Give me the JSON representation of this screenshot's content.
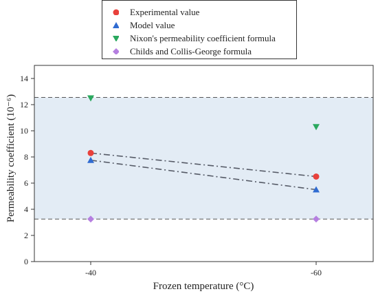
{
  "chart_data": {
    "type": "line",
    "categories": [
      "-40",
      "-60"
    ],
    "xlabel": "Frozen temperature (°C)",
    "ylabel": "Permeability coefficient (10⁻⁶)",
    "ylim": [
      0,
      15
    ],
    "yticks": [
      0,
      2,
      4,
      6,
      8,
      10,
      12,
      14
    ],
    "band": [
      3.25,
      12.55
    ],
    "band_color": "#e3ecf5",
    "legend_position": "top-center, outside plot",
    "series": [
      {
        "name": "Experimental value",
        "values": [
          8.3,
          6.5
        ],
        "marker": "circle",
        "color": "#e8413c",
        "line": "dash-dot"
      },
      {
        "name": "Model value",
        "values": [
          7.75,
          5.5
        ],
        "marker": "triangle-up",
        "color": "#2f6bd1",
        "line": "dash-dot"
      },
      {
        "name": "Nixon's permeability coefficient formula",
        "values": [
          12.5,
          10.3
        ],
        "marker": "triangle-down",
        "color": "#2aa85e",
        "line": "none"
      },
      {
        "name": "Childs and Collis-George formula",
        "values": [
          3.25,
          3.25
        ],
        "marker": "diamond",
        "color": "#b57fe0",
        "line": "none"
      }
    ]
  }
}
